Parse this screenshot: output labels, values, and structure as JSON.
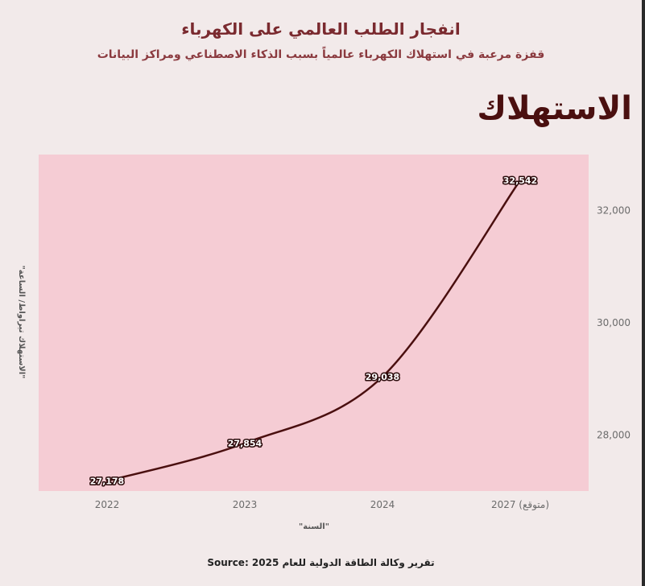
{
  "header": {
    "title": "انفجار الطلب العالمي على الكهرباء",
    "subtitle": "قفزة مرعبة في استهلاك الكهرباء عالمياً بسبب الذكاء الاصطناعي ومراكز البيانات",
    "big_label": "الاستهلاك"
  },
  "footer": {
    "source": "Source: 2025 تقرير وكالة الطاقة الدولية للعام"
  },
  "colors": {
    "plot_bg": "#f5ccd4",
    "line": "#4a0f0f",
    "page_bg": "#f2eaea"
  },
  "chart_data": {
    "type": "line",
    "categories": [
      "2022",
      "2023",
      "2024",
      "2027 (متوقع)"
    ],
    "series": [
      {
        "values": [
          27178,
          27854,
          29038,
          32542
        ],
        "labels": [
          "27,178",
          "27,854",
          "29,038",
          "32,542"
        ]
      }
    ],
    "xlabel": "\"السنة\"",
    "ylabel": "\"الاستهلاك تيراواط/ الساعة\"",
    "yticks": [
      28000,
      30000,
      32000
    ],
    "ytick_labels": [
      "28,000",
      "30,000",
      "32,000"
    ],
    "ylim": [
      27000,
      33000
    ],
    "y_axis_side": "right",
    "grid": false
  }
}
